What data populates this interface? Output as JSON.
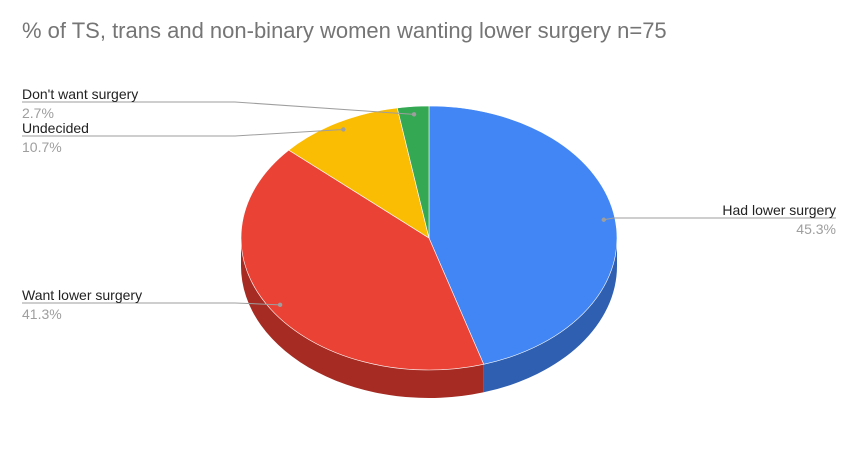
{
  "chart_data": {
    "type": "pie",
    "title": "% of TS, trans and non-binary women wanting lower surgery n=75",
    "legend": "labels-on-leader-lines",
    "slices": [
      {
        "label": "Had lower surgery",
        "pct_label": "45.3%",
        "value": 45.3,
        "color": "#4285f4",
        "side_color": "#2f5fb0"
      },
      {
        "label": "Want lower surgery",
        "pct_label": "41.3%",
        "value": 41.3,
        "color": "#ea4335",
        "side_color": "#a52b23"
      },
      {
        "label": "Undecided",
        "pct_label": "10.7%",
        "value": 10.7,
        "color": "#fbbc04",
        "side_color": "#b38600"
      },
      {
        "label": "Don't want surgery",
        "pct_label": "2.7%",
        "value": 2.7,
        "color": "#34a853",
        "side_color": "#23753a"
      }
    ]
  }
}
